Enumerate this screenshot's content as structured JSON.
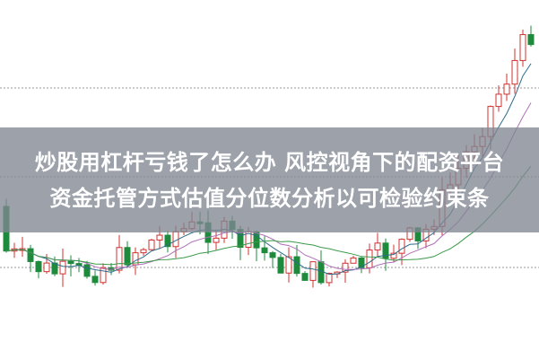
{
  "title": {
    "line1": "炒股用杠杆亏钱了怎么办 风控视角下的配资平台",
    "line2": "资金托管方式估值分位数分析以可检验约束条"
  },
  "colors": {
    "up": "#d2312f",
    "down": "#1e8a3c",
    "overlay": "#808692",
    "ma1": "#2f6b8a",
    "ma2": "#b070b8",
    "ma3": "#3a9a4a"
  }
}
